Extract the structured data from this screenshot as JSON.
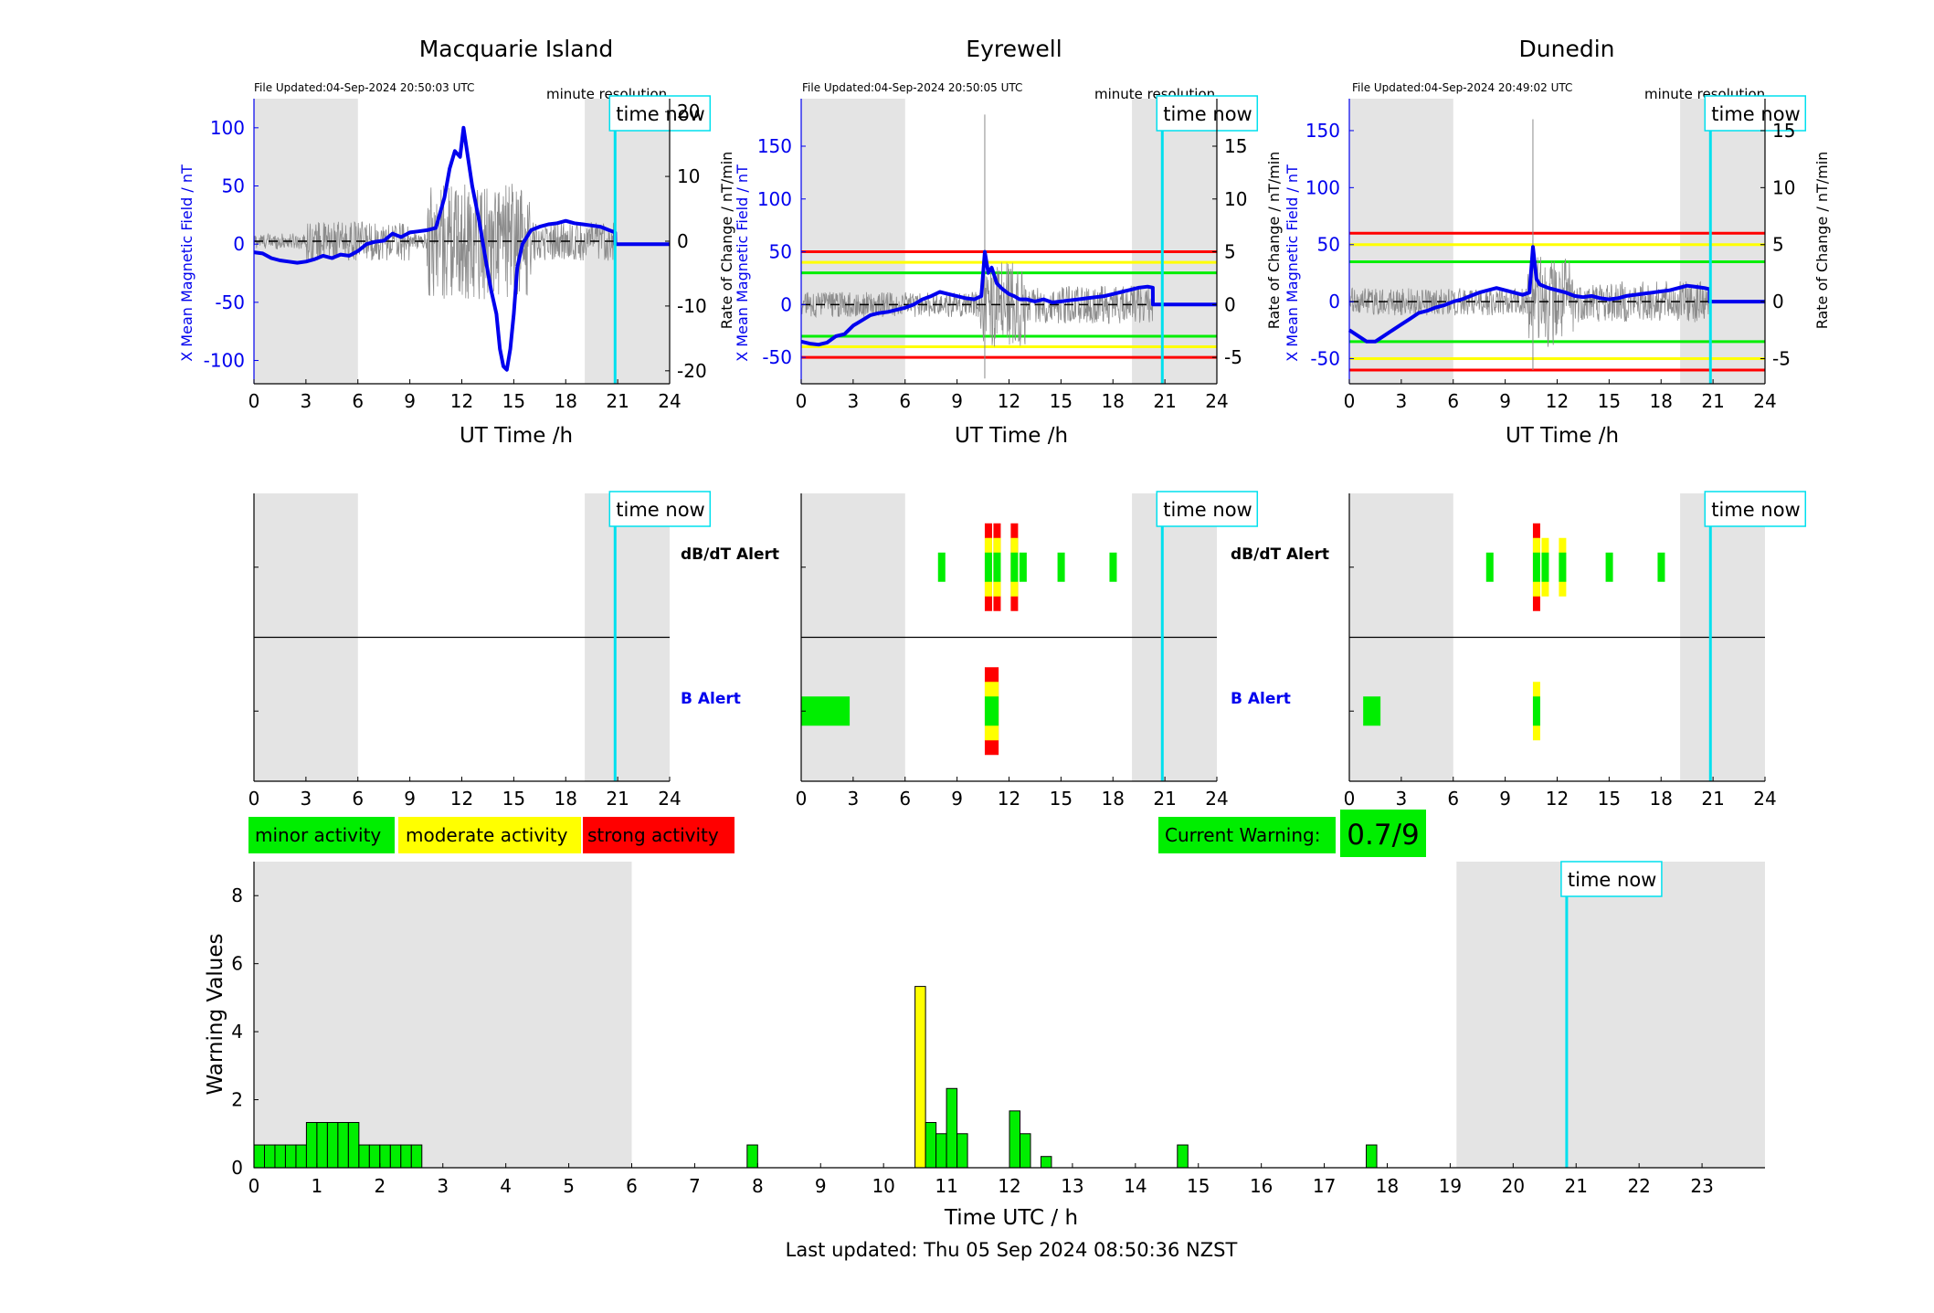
{
  "stations": [
    {
      "title": "Macquarie Island",
      "file_updated": "File Updated:04-Sep-2024 20:50:03 UTC",
      "resolution_label": "minute resolution",
      "time_now_label": "time now",
      "ylabel_left": "X Mean Magnetic Field / nT",
      "ylabel_right": "Rate of Change / nT/min",
      "xlabel": "UT Time /h"
    },
    {
      "title": "Eyrewell",
      "file_updated": "File Updated:04-Sep-2024 20:50:05 UTC",
      "resolution_label": "minute resolution",
      "time_now_label": "time now",
      "ylabel_left": "X Mean Magnetic Field / nT",
      "ylabel_right": "Rate of Change / nT/min",
      "xlabel": "UT Time /h"
    },
    {
      "title": "Dunedin",
      "file_updated": "File Updated:04-Sep-2024 20:49:02 UTC",
      "resolution_label": "minute resolution",
      "time_now_label": "time now",
      "ylabel_left": "X Mean Magnetic Field / nT",
      "ylabel_right": "Rate of Change / nT/min",
      "xlabel": "UT Time /h"
    }
  ],
  "alert_labels": {
    "dbdt": "dB/dT Alert",
    "b": "B Alert"
  },
  "legend": {
    "minor": "minor activity",
    "moderate": "moderate activity",
    "strong": "strong activity"
  },
  "current_warning": {
    "label": "Current Warning:",
    "value": "0.7/9"
  },
  "bottom": {
    "ylabel": "Warning Values",
    "xlabel": "Time UTC / h",
    "time_now_label": "time now"
  },
  "last_updated": "Last updated: Thu 05 Sep 2024 08:50:36 NZST",
  "colors": {
    "mean_field": "#0000ee",
    "rate": "#8c8c8c",
    "time_now": "#00e0ee",
    "night": "#e4e4e4",
    "minor": "#00ee00",
    "moderate": "#ffff00",
    "strong": "#ff0000"
  },
  "chart_data": [
    {
      "type": "line",
      "station": "Macquarie Island",
      "xlim": [
        0,
        24
      ],
      "ylim_left": [
        -120,
        125
      ],
      "ylim_right": [
        -22,
        22
      ],
      "xticks": [
        0,
        3,
        6,
        9,
        12,
        15,
        18,
        21,
        24
      ],
      "yticks_left": [
        -100,
        -50,
        0,
        50,
        100
      ],
      "yticks_right": [
        -20,
        -10,
        0,
        10,
        20
      ],
      "shaded_ut": [
        [
          0,
          6
        ],
        [
          19.1,
          24
        ]
      ],
      "time_now": 20.85,
      "thresholds": [],
      "mean_field": [
        [
          0,
          -7
        ],
        [
          0.5,
          -8
        ],
        [
          1,
          -12
        ],
        [
          1.5,
          -14
        ],
        [
          2,
          -15
        ],
        [
          2.5,
          -16
        ],
        [
          3,
          -15
        ],
        [
          3.5,
          -13
        ],
        [
          4,
          -10
        ],
        [
          4.5,
          -12
        ],
        [
          5,
          -9
        ],
        [
          5.5,
          -10
        ],
        [
          6,
          -6
        ],
        [
          6.5,
          0
        ],
        [
          7,
          2
        ],
        [
          7.5,
          3
        ],
        [
          8,
          9
        ],
        [
          8.5,
          6
        ],
        [
          9,
          10
        ],
        [
          9.5,
          11
        ],
        [
          10,
          12
        ],
        [
          10.5,
          14
        ],
        [
          11,
          40
        ],
        [
          11.3,
          65
        ],
        [
          11.6,
          80
        ],
        [
          11.9,
          75
        ],
        [
          12.1,
          100
        ],
        [
          12.3,
          80
        ],
        [
          12.6,
          50
        ],
        [
          13,
          20
        ],
        [
          13.4,
          -15
        ],
        [
          13.7,
          -40
        ],
        [
          14,
          -60
        ],
        [
          14.2,
          -90
        ],
        [
          14.4,
          -105
        ],
        [
          14.6,
          -108
        ],
        [
          14.8,
          -90
        ],
        [
          15,
          -60
        ],
        [
          15.2,
          -20
        ],
        [
          15.5,
          0
        ],
        [
          16,
          12
        ],
        [
          16.5,
          15
        ],
        [
          17,
          17
        ],
        [
          17.5,
          18
        ],
        [
          18,
          20
        ],
        [
          18.5,
          18
        ],
        [
          19,
          17
        ],
        [
          19.5,
          16
        ],
        [
          20,
          15
        ],
        [
          20.5,
          12
        ],
        [
          20.85,
          10
        ],
        [
          20.86,
          0
        ],
        [
          24,
          0
        ]
      ],
      "rate_scatter_min": -18,
      "rate_scatter_max": 18
    },
    {
      "type": "line",
      "station": "Eyrewell",
      "xlim": [
        0,
        24
      ],
      "ylim_left": [
        -75,
        195
      ],
      "ylim_right": [
        -7.5,
        19.5
      ],
      "xticks": [
        0,
        3,
        6,
        9,
        12,
        15,
        18,
        21,
        24
      ],
      "yticks_left": [
        -50,
        0,
        50,
        100,
        150
      ],
      "yticks_right": [
        -5,
        0,
        5,
        10,
        15
      ],
      "shaded_ut": [
        [
          0,
          6
        ],
        [
          19.1,
          24
        ]
      ],
      "time_now": 20.85,
      "thresholds": [
        {
          "value": 50,
          "color": "#ff0000"
        },
        {
          "value": 40,
          "color": "#ffff00"
        },
        {
          "value": 30,
          "color": "#00ee00"
        },
        {
          "value": -30,
          "color": "#00ee00"
        },
        {
          "value": -40,
          "color": "#ffff00"
        },
        {
          "value": -50,
          "color": "#ff0000"
        }
      ],
      "mean_field": [
        [
          0,
          -35
        ],
        [
          0.5,
          -37
        ],
        [
          1,
          -38
        ],
        [
          1.5,
          -36
        ],
        [
          2,
          -30
        ],
        [
          2.5,
          -28
        ],
        [
          3,
          -20
        ],
        [
          3.5,
          -15
        ],
        [
          4,
          -10
        ],
        [
          4.5,
          -8
        ],
        [
          5,
          -7
        ],
        [
          5.5,
          -5
        ],
        [
          6,
          -3
        ],
        [
          6.5,
          0
        ],
        [
          7,
          5
        ],
        [
          7.5,
          8
        ],
        [
          8,
          12
        ],
        [
          8.5,
          10
        ],
        [
          9,
          8
        ],
        [
          9.5,
          6
        ],
        [
          10,
          5
        ],
        [
          10.4,
          8
        ],
        [
          10.6,
          50
        ],
        [
          10.8,
          30
        ],
        [
          11,
          35
        ],
        [
          11.3,
          20
        ],
        [
          11.6,
          15
        ],
        [
          12,
          10
        ],
        [
          12.3,
          8
        ],
        [
          12.6,
          5
        ],
        [
          13,
          5
        ],
        [
          13.5,
          3
        ],
        [
          14,
          5
        ],
        [
          14.5,
          2
        ],
        [
          15,
          3
        ],
        [
          15.5,
          4
        ],
        [
          16,
          5
        ],
        [
          16.5,
          6
        ],
        [
          17,
          7
        ],
        [
          17.5,
          8
        ],
        [
          18,
          10
        ],
        [
          18.5,
          12
        ],
        [
          19,
          14
        ],
        [
          19.5,
          16
        ],
        [
          20,
          17
        ],
        [
          20.3,
          16
        ],
        [
          20.31,
          0
        ],
        [
          24,
          0
        ]
      ],
      "rate_scatter_min": -7,
      "rate_scatter_max": 18
    },
    {
      "type": "line",
      "station": "Dunedin",
      "xlim": [
        0,
        24
      ],
      "ylim_left": [
        -72,
        178
      ],
      "ylim_right": [
        -7.2,
        17.8
      ],
      "xticks": [
        0,
        3,
        6,
        9,
        12,
        15,
        18,
        21,
        24
      ],
      "yticks_left": [
        -50,
        0,
        50,
        100,
        150
      ],
      "yticks_right": [
        -5,
        0,
        5,
        10,
        15
      ],
      "shaded_ut": [
        [
          0,
          6
        ],
        [
          19.1,
          24
        ]
      ],
      "time_now": 20.85,
      "thresholds": [
        {
          "value": 60,
          "color": "#ff0000"
        },
        {
          "value": 50,
          "color": "#ffff00"
        },
        {
          "value": 35,
          "color": "#00ee00"
        },
        {
          "value": -35,
          "color": "#00ee00"
        },
        {
          "value": -50,
          "color": "#ffff00"
        },
        {
          "value": -60,
          "color": "#ff0000"
        }
      ],
      "mean_field": [
        [
          0,
          -25
        ],
        [
          0.5,
          -30
        ],
        [
          1,
          -35
        ],
        [
          1.5,
          -35
        ],
        [
          2,
          -30
        ],
        [
          2.5,
          -25
        ],
        [
          3,
          -20
        ],
        [
          3.5,
          -15
        ],
        [
          4,
          -10
        ],
        [
          4.5,
          -8
        ],
        [
          5,
          -5
        ],
        [
          5.5,
          -3
        ],
        [
          6,
          0
        ],
        [
          6.5,
          2
        ],
        [
          7,
          5
        ],
        [
          7.5,
          8
        ],
        [
          8,
          10
        ],
        [
          8.5,
          12
        ],
        [
          9,
          10
        ],
        [
          9.5,
          8
        ],
        [
          10,
          6
        ],
        [
          10.4,
          8
        ],
        [
          10.6,
          48
        ],
        [
          10.8,
          20
        ],
        [
          11,
          15
        ],
        [
          11.5,
          12
        ],
        [
          12,
          10
        ],
        [
          12.5,
          8
        ],
        [
          13,
          5
        ],
        [
          13.5,
          4
        ],
        [
          14,
          5
        ],
        [
          14.5,
          3
        ],
        [
          15,
          2
        ],
        [
          15.5,
          3
        ],
        [
          16,
          5
        ],
        [
          16.5,
          6
        ],
        [
          17,
          7
        ],
        [
          17.5,
          8
        ],
        [
          18,
          9
        ],
        [
          18.5,
          10
        ],
        [
          19,
          12
        ],
        [
          19.5,
          14
        ],
        [
          20,
          13
        ],
        [
          20.5,
          12
        ],
        [
          20.8,
          11
        ],
        [
          20.81,
          0
        ],
        [
          24,
          0
        ]
      ],
      "rate_scatter_min": -6,
      "rate_scatter_max": 16
    },
    {
      "type": "heatmap",
      "station": "Macquarie Island",
      "xlim": [
        0,
        24
      ],
      "xticks": [
        0,
        3,
        6,
        9,
        12,
        15,
        18,
        21,
        24
      ],
      "time_now": 20.85,
      "dbdt_alerts": [],
      "b_alerts": []
    },
    {
      "type": "heatmap",
      "station": "Eyrewell",
      "xlim": [
        0,
        24
      ],
      "xticks": [
        0,
        3,
        6,
        9,
        12,
        15,
        18,
        21,
        24
      ],
      "time_now": 20.85,
      "dbdt_alerts": [
        {
          "t": 7.9,
          "level": 1
        },
        {
          "t": 10.6,
          "level": 3
        },
        {
          "t": 11.1,
          "level": 3
        },
        {
          "t": 12.1,
          "level": 3
        },
        {
          "t": 12.6,
          "level": 1
        },
        {
          "t": 14.8,
          "level": 1
        },
        {
          "t": 17.8,
          "level": 1
        }
      ],
      "b_alerts": [
        {
          "t": 0,
          "t_end": 2.8,
          "level": 1
        },
        {
          "t": 10.6,
          "t_end": 11.4,
          "level": 3
        }
      ]
    },
    {
      "type": "heatmap",
      "station": "Dunedin",
      "xlim": [
        0,
        24
      ],
      "xticks": [
        0,
        3,
        6,
        9,
        12,
        15,
        18,
        21,
        24
      ],
      "time_now": 20.85,
      "dbdt_alerts": [
        {
          "t": 7.9,
          "level": 1
        },
        {
          "t": 10.6,
          "level": 3
        },
        {
          "t": 11.1,
          "level": 2
        },
        {
          "t": 12.1,
          "level": 2
        },
        {
          "t": 14.8,
          "level": 1
        },
        {
          "t": 17.8,
          "level": 1
        }
      ],
      "b_alerts": [
        {
          "t": 0.8,
          "t_end": 1.8,
          "level": 1
        },
        {
          "t": 10.6,
          "t_end": 11.0,
          "level": 2
        }
      ]
    },
    {
      "type": "bar",
      "title": "",
      "xlabel": "Time UTC / h",
      "ylabel": "Warning Values",
      "xlim": [
        0,
        24
      ],
      "ylim": [
        0,
        9
      ],
      "xticks": [
        0,
        1,
        2,
        3,
        4,
        5,
        6,
        7,
        8,
        9,
        10,
        11,
        12,
        13,
        14,
        15,
        16,
        17,
        18,
        19,
        20,
        21,
        22,
        23
      ],
      "yticks": [
        0,
        2,
        4,
        6,
        8
      ],
      "shaded_ut": [
        [
          0,
          6
        ],
        [
          19.1,
          24
        ]
      ],
      "time_now": 20.85,
      "bin_width": 0.1667,
      "bars": [
        {
          "start": 0.0,
          "value": 0.67,
          "level": 1
        },
        {
          "start": 0.167,
          "value": 0.67,
          "level": 1
        },
        {
          "start": 0.333,
          "value": 0.67,
          "level": 1
        },
        {
          "start": 0.5,
          "value": 0.67,
          "level": 1
        },
        {
          "start": 0.667,
          "value": 0.67,
          "level": 1
        },
        {
          "start": 0.833,
          "value": 1.33,
          "level": 1
        },
        {
          "start": 1.0,
          "value": 1.33,
          "level": 1
        },
        {
          "start": 1.167,
          "value": 1.33,
          "level": 1
        },
        {
          "start": 1.333,
          "value": 1.33,
          "level": 1
        },
        {
          "start": 1.5,
          "value": 1.33,
          "level": 1
        },
        {
          "start": 1.667,
          "value": 0.67,
          "level": 1
        },
        {
          "start": 1.833,
          "value": 0.67,
          "level": 1
        },
        {
          "start": 2.0,
          "value": 0.67,
          "level": 1
        },
        {
          "start": 2.167,
          "value": 0.67,
          "level": 1
        },
        {
          "start": 2.333,
          "value": 0.67,
          "level": 1
        },
        {
          "start": 2.5,
          "value": 0.67,
          "level": 1
        },
        {
          "start": 7.833,
          "value": 0.67,
          "level": 1
        },
        {
          "start": 10.5,
          "value": 5.33,
          "level": 2
        },
        {
          "start": 10.667,
          "value": 1.33,
          "level": 1
        },
        {
          "start": 10.833,
          "value": 1.0,
          "level": 1
        },
        {
          "start": 11.0,
          "value": 2.33,
          "level": 1
        },
        {
          "start": 11.167,
          "value": 1.0,
          "level": 1
        },
        {
          "start": 12.0,
          "value": 1.67,
          "level": 1
        },
        {
          "start": 12.167,
          "value": 1.0,
          "level": 1
        },
        {
          "start": 12.5,
          "value": 0.33,
          "level": 1
        },
        {
          "start": 14.667,
          "value": 0.67,
          "level": 1
        },
        {
          "start": 17.667,
          "value": 0.67,
          "level": 1
        }
      ]
    }
  ]
}
